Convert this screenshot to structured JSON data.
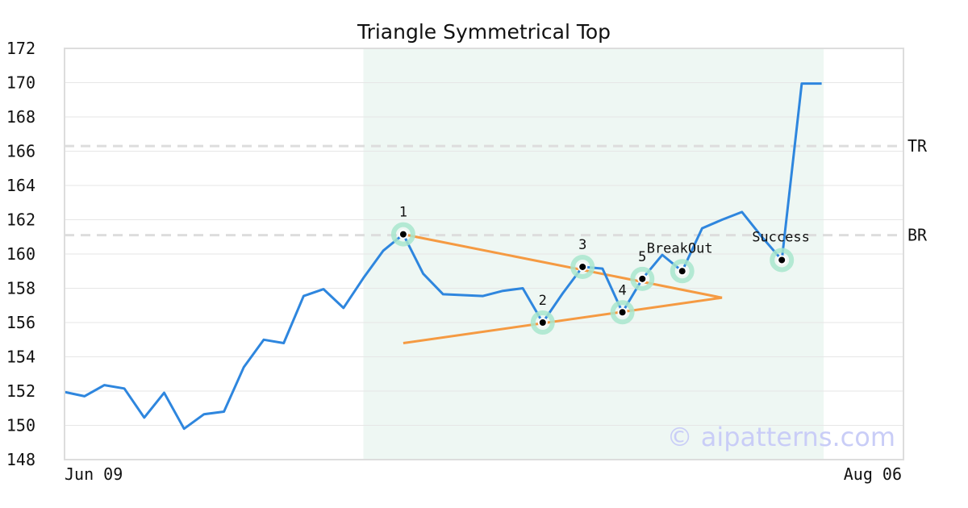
{
  "chart_data": {
    "type": "line",
    "title": "Triangle Symmetrical Top",
    "xlabel": "",
    "ylabel": "",
    "ylim": [
      148,
      172
    ],
    "y_ticks": [
      148,
      150,
      152,
      154,
      156,
      158,
      160,
      162,
      164,
      166,
      168,
      170,
      172
    ],
    "x_tick_labels": [
      "Jun 09",
      "Aug 06"
    ],
    "grid": true,
    "x_count": 41,
    "series": [
      {
        "color": "#2e86de",
        "values": [
          151.95,
          151.7,
          152.35,
          152.15,
          150.45,
          151.9,
          149.8,
          150.65,
          150.8,
          153.4,
          155.0,
          154.8,
          157.55,
          157.95,
          156.85,
          158.6,
          160.2,
          161.15,
          158.85,
          157.65,
          157.6,
          157.55,
          157.85,
          158.0,
          156.0,
          157.7,
          159.25,
          159.15,
          156.6,
          158.55,
          159.95,
          159.0,
          161.5,
          162.0,
          162.45,
          161.0,
          159.65,
          169.95,
          169.95
        ]
      }
    ],
    "highlight_region": {
      "x_start": 15,
      "x_end": 38.1,
      "color": "#eef7f3"
    },
    "pattern_points": [
      {
        "label": "1",
        "x": 17,
        "y": 161.15
      },
      {
        "label": "2",
        "x": 24,
        "y": 156.0
      },
      {
        "label": "3",
        "x": 26,
        "y": 159.25
      },
      {
        "label": "4",
        "x": 28,
        "y": 156.6
      },
      {
        "label": "5",
        "x": 29,
        "y": 158.55
      },
      {
        "label": "BreakOut",
        "x": 31,
        "y": 159.0
      },
      {
        "label": "Success",
        "x": 36,
        "y": 159.65
      }
    ],
    "trendlines": [
      {
        "color": "#f59a42",
        "x1": 17,
        "y1": 161.15,
        "x2": 33,
        "y2": 157.45
      },
      {
        "color": "#f59a42",
        "x1": 17,
        "y1": 154.8,
        "x2": 33,
        "y2": 157.45
      }
    ],
    "reference_lines": [
      {
        "label": "TR",
        "y": 166.3,
        "color": "#dddddd"
      },
      {
        "label": "BR",
        "y": 161.1,
        "color": "#dddddd"
      }
    ],
    "watermark": "© aipatterns.com"
  }
}
